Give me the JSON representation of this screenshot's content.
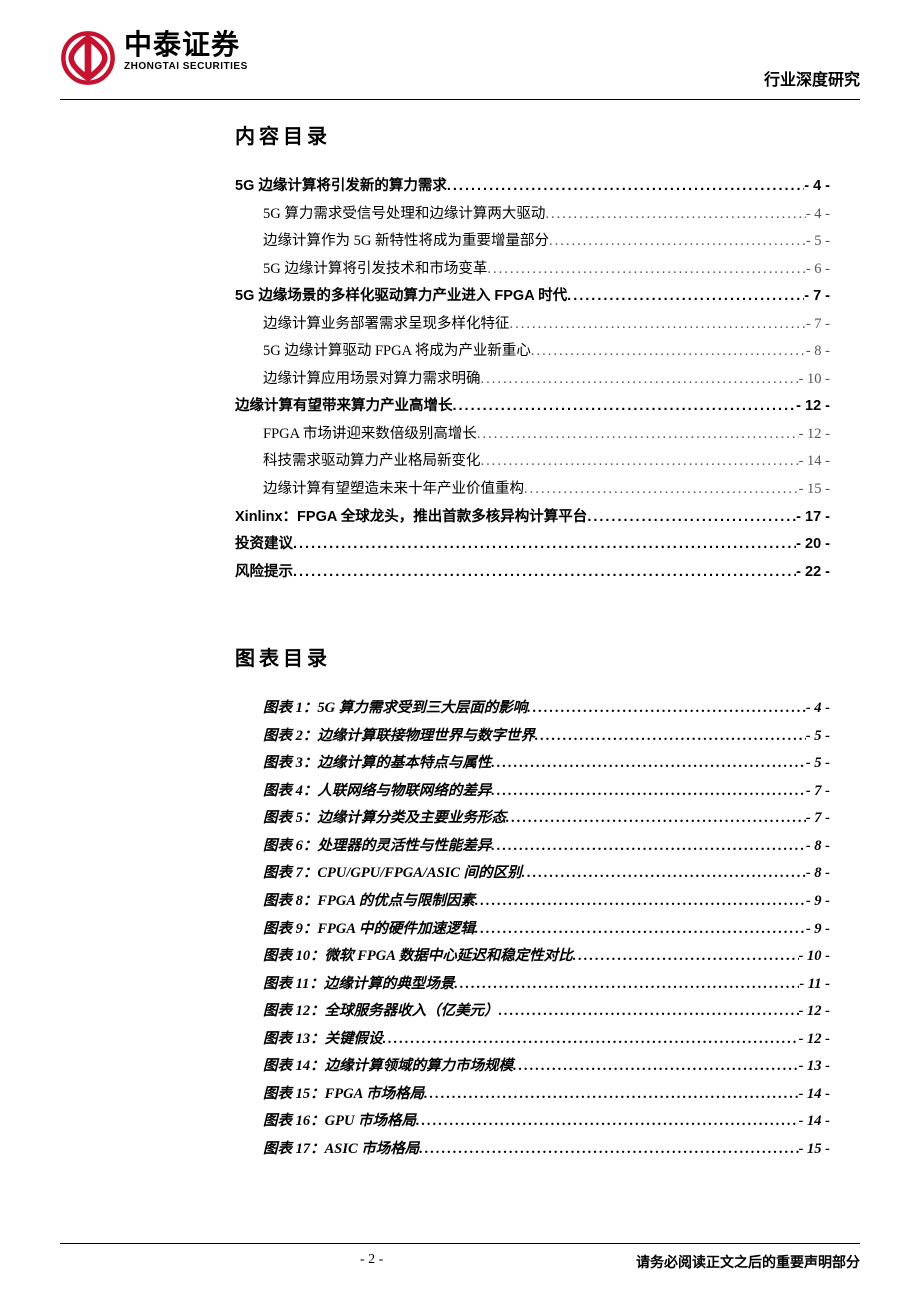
{
  "header": {
    "logo_cn": "中泰证券",
    "logo_en": "ZHONGTAI SECURITIES",
    "right": "行业深度研究",
    "logo_color": "#c41230"
  },
  "toc": {
    "title": "内容目录",
    "items": [
      {
        "label": "5G 边缘计算将引发新的算力需求",
        "page": "- 4 -",
        "level": 1
      },
      {
        "label": "5G 算力需求受信号处理和边缘计算两大驱动",
        "page": "- 4 -",
        "level": 2
      },
      {
        "label": "边缘计算作为 5G 新特性将成为重要增量部分",
        "page": "- 5 -",
        "level": 2
      },
      {
        "label": "5G 边缘计算将引发技术和市场变革",
        "page": "- 6 -",
        "level": 2
      },
      {
        "label": "5G 边缘场景的多样化驱动算力产业进入 FPGA 时代",
        "page": "- 7 -",
        "level": 1
      },
      {
        "label": "边缘计算业务部署需求呈现多样化特征",
        "page": "- 7 -",
        "level": 2
      },
      {
        "label": "5G 边缘计算驱动 FPGA 将成为产业新重心",
        "page": "- 8 -",
        "level": 2
      },
      {
        "label": "边缘计算应用场景对算力需求明确",
        "page": "- 10 -",
        "level": 2
      },
      {
        "label": "边缘计算有望带来算力产业高增长",
        "page": "- 12 -",
        "level": 1
      },
      {
        "label": "FPGA 市场讲迎来数倍级别高增长",
        "page": "- 12 -",
        "level": 2
      },
      {
        "label": "科技需求驱动算力产业格局新变化",
        "page": "- 14 -",
        "level": 2
      },
      {
        "label": "边缘计算有望塑造未来十年产业价值重构",
        "page": "- 15 -",
        "level": 2
      },
      {
        "label": "Xinlinx：FPGA 全球龙头，推出首款多核异构计算平台",
        "page": "- 17 -",
        "level": 1
      },
      {
        "label": "投资建议",
        "page": "- 20 -",
        "level": 1
      },
      {
        "label": "风险提示",
        "page": "- 22 -",
        "level": 1
      }
    ]
  },
  "figures": {
    "title": "图表目录",
    "items": [
      {
        "label": "图表 1：5G 算力需求受到三大层面的影响",
        "page": "- 4 -"
      },
      {
        "label": "图表 2：边缘计算联接物理世界与数字世界",
        "page": "- 5 -"
      },
      {
        "label": "图表 3：边缘计算的基本特点与属性",
        "page": "- 5 -"
      },
      {
        "label": "图表 4：人联网络与物联网络的差异",
        "page": "- 7 -"
      },
      {
        "label": "图表 5：边缘计算分类及主要业务形态",
        "page": "- 7 -"
      },
      {
        "label": "图表 6：处理器的灵活性与性能差异",
        "page": "- 8 -"
      },
      {
        "label": "图表 7：CPU/GPU/FPGA/ASIC 间的区别",
        "page": "- 8 -"
      },
      {
        "label": "图表 8：FPGA 的优点与限制因素",
        "page": "- 9 -"
      },
      {
        "label": "图表 9：FPGA 中的硬件加速逻辑",
        "page": "- 9 -"
      },
      {
        "label": "图表 10：微软 FPGA 数据中心延迟和稳定性对比",
        "page": "- 10 -"
      },
      {
        "label": "图表 11：边缘计算的典型场景",
        "page": "- 11 -"
      },
      {
        "label": "图表 12：全球服务器收入（亿美元）",
        "page": "- 12 -"
      },
      {
        "label": "图表 13：关键假设",
        "page": "- 12 -"
      },
      {
        "label": "图表 14：边缘计算领域的算力市场规模",
        "page": "- 13 -"
      },
      {
        "label": "图表 15：FPGA 市场格局",
        "page": "- 14 -"
      },
      {
        "label": "图表 16：GPU 市场格局",
        "page": "- 14 -"
      },
      {
        "label": "图表 17：ASIC 市场格局",
        "page": "- 15 -"
      }
    ]
  },
  "footer": {
    "page_num": "- 2 -",
    "disclaimer": "请务必阅读正文之后的重要声明部分"
  }
}
